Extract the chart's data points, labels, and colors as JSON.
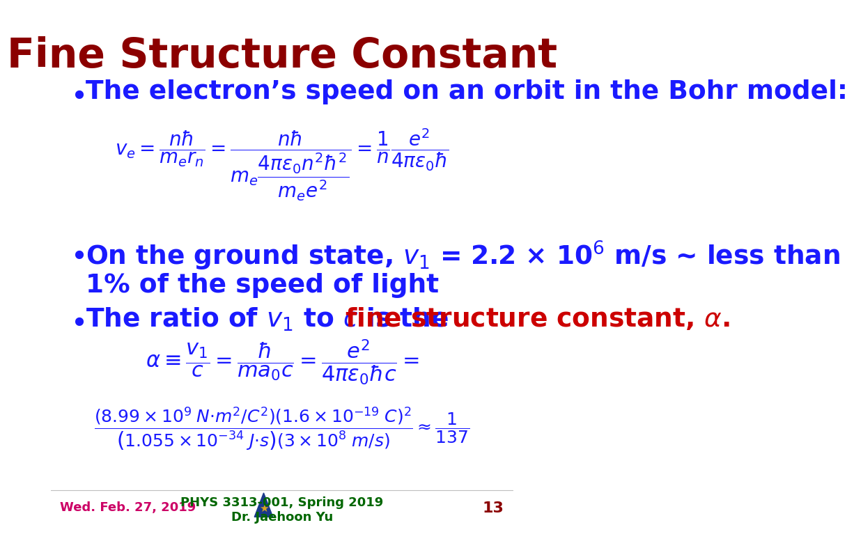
{
  "title": "Fine Structure Constant",
  "title_color": "#8B0000",
  "title_fontsize": 42,
  "body_color": "#1a1aff",
  "body_fontsize": 28,
  "bold_red_color": "#cc0000",
  "footer_date": "Wed. Feb. 27, 2019",
  "footer_date_color": "#cc0066",
  "footer_course": "PHYS 3313-001, Spring 2019",
  "footer_instructor": "Dr. Jaehoon Yu",
  "footer_course_color": "#006600",
  "footer_page": "13",
  "footer_page_color": "#8B0000",
  "background_color": "#ffffff",
  "bullet1": "The electron’s speed on an orbit in the Bohr model:",
  "bullet2_line1": "On the ground state, $v_1$ = 2.2 × 10$^6$ m/s ~ less than",
  "bullet2_line2": "1% of the speed of light",
  "bullet3_prefix": "The ratio of $v_1$ to $c$ is the ",
  "bullet3_bold": "fine structure constant, α.",
  "eq1": "$v_e = \\dfrac{n\\hbar}{m_e r_n} = \\dfrac{n\\hbar}{m_e \\dfrac{4\\pi\\varepsilon_0 n^2 \\hbar^2}{m_e e^2}} = \\dfrac{1}{n} \\dfrac{e^2}{4\\pi\\varepsilon_0 \\hbar}$",
  "eq2": "$\\alpha \\equiv \\dfrac{v_1}{c} = \\dfrac{\\hbar}{ma_0 c} = \\dfrac{e^2}{4\\pi\\varepsilon_0 \\hbar c} =$",
  "eq3": "$\\dfrac{\\left(8.99\\times10^9\\, N{\\cdot}m^2/C^2\\right)\\left(1.6\\times10^{-19}\\, C\\right)^2}{\\left(1.055\\times10^{-34}\\, J{\\cdot}s\\right)\\left(3\\times10^8\\, m/s\\right)} \\approx \\dfrac{1}{137}$"
}
